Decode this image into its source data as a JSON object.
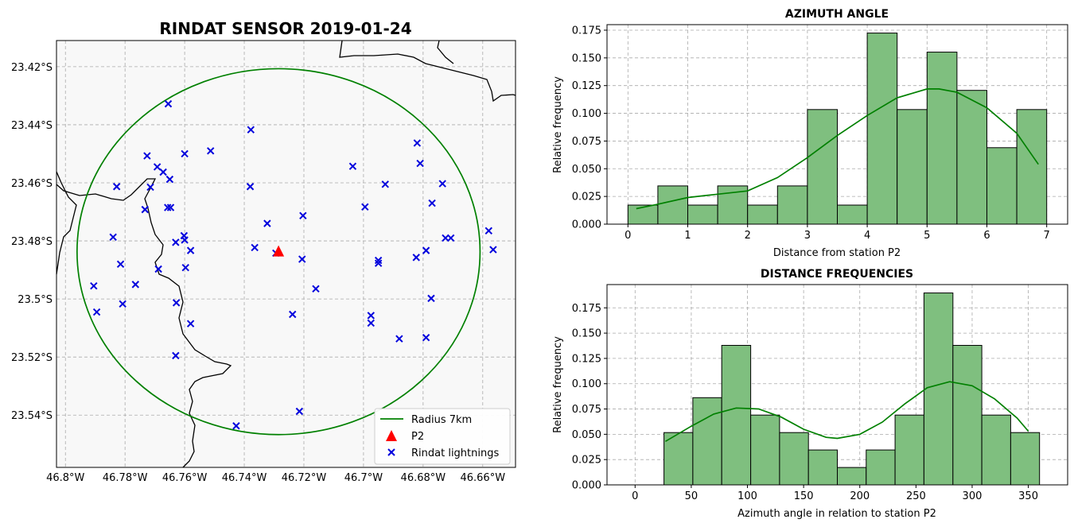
{
  "chart_data": [
    {
      "type": "map-scatter",
      "title": "RINDAT SENSOR 2019-01-24",
      "xlim": [
        -46.803,
        -46.649
      ],
      "ylim": [
        -23.558,
        -23.411
      ],
      "xticks": [
        -46.8,
        -46.78,
        -46.76,
        -46.74,
        -46.72,
        -46.7,
        -46.68,
        -46.66
      ],
      "xtick_labels": [
        "46.8°W",
        "46.78°W",
        "46.76°W",
        "46.74°W",
        "46.72°W",
        "46.7°W",
        "46.68°W",
        "46.66°W"
      ],
      "yticks": [
        -23.42,
        -23.44,
        -23.46,
        -23.48,
        -23.5,
        -23.52,
        -23.54
      ],
      "ytick_labels": [
        "23.42°S",
        "23.44°S",
        "23.46°S",
        "23.48°S",
        "23.5°S",
        "23.52°S",
        "23.54°S"
      ],
      "grid": true,
      "station": {
        "name": "P2",
        "lon": -46.7285,
        "lat": -23.4837
      },
      "radius": {
        "name": "Radius 7km",
        "rx_deg": 0.0676,
        "ry_deg": 0.063
      },
      "lightnings_name": "Rindat lightnings",
      "lightnings": [
        [
          -46.7655,
          -23.4328
        ],
        [
          -46.7378,
          -23.4417
        ],
        [
          -46.7513,
          -23.449
        ],
        [
          -46.76,
          -23.45
        ],
        [
          -46.7726,
          -23.4507
        ],
        [
          -46.7692,
          -23.4545
        ],
        [
          -46.7672,
          -23.4563
        ],
        [
          -46.765,
          -23.4588
        ],
        [
          -46.7715,
          -23.4615
        ],
        [
          -46.7828,
          -23.4613
        ],
        [
          -46.738,
          -23.4613
        ],
        [
          -46.7733,
          -23.4692
        ],
        [
          -46.7657,
          -23.4685
        ],
        [
          -46.7647,
          -23.4685
        ],
        [
          -46.7203,
          -23.4713
        ],
        [
          -46.7323,
          -23.474
        ],
        [
          -46.784,
          -23.4787
        ],
        [
          -46.7602,
          -23.4782
        ],
        [
          -46.76,
          -23.4797
        ],
        [
          -46.763,
          -23.4805
        ],
        [
          -46.758,
          -23.4833
        ],
        [
          -46.7365,
          -23.4823
        ],
        [
          -46.7294,
          -23.4842
        ],
        [
          -46.7206,
          -23.4863
        ],
        [
          -46.7815,
          -23.488
        ],
        [
          -46.7688,
          -23.4897
        ],
        [
          -46.7597,
          -23.4892
        ],
        [
          -46.716,
          -23.4965
        ],
        [
          -46.7905,
          -23.4955
        ],
        [
          -46.7765,
          -23.495
        ],
        [
          -46.7628,
          -23.5013
        ],
        [
          -46.7808,
          -23.5017
        ],
        [
          -46.7895,
          -23.5045
        ],
        [
          -46.758,
          -23.5085
        ],
        [
          -46.7238,
          -23.5053
        ],
        [
          -46.763,
          -23.5195
        ],
        [
          -46.7215,
          -23.5387
        ],
        [
          -46.7427,
          -23.5437
        ],
        [
          -46.7036,
          -23.4543
        ],
        [
          -46.6995,
          -23.4683
        ],
        [
          -46.6927,
          -23.4605
        ],
        [
          -46.695,
          -23.4867
        ],
        [
          -46.695,
          -23.4877
        ],
        [
          -46.6975,
          -23.5057
        ],
        [
          -46.6975,
          -23.5083
        ],
        [
          -46.688,
          -23.5137
        ],
        [
          -46.682,
          -23.4463
        ],
        [
          -46.681,
          -23.4533
        ],
        [
          -46.677,
          -23.467
        ],
        [
          -46.6735,
          -23.4603
        ],
        [
          -46.6725,
          -23.479
        ],
        [
          -46.6707,
          -23.479
        ],
        [
          -46.679,
          -23.4833
        ],
        [
          -46.6823,
          -23.4857
        ],
        [
          -46.679,
          -23.5133
        ],
        [
          -46.6773,
          -23.4998
        ],
        [
          -46.658,
          -23.4765
        ],
        [
          -46.6565,
          -23.483
        ]
      ],
      "legend_location": "lower right"
    },
    {
      "type": "histogram",
      "title": "AZIMUTH ANGLE",
      "xlabel": "Distance from station P2",
      "ylabel": "Relative frequency",
      "bin_edges": [
        0,
        0.5,
        1,
        1.5,
        2,
        2.5,
        3,
        3.5,
        4,
        4.5,
        5,
        5.5,
        6,
        6.5,
        7
      ],
      "values": [
        0.0172,
        0.0345,
        0.0172,
        0.0345,
        0.0172,
        0.0345,
        0.1034,
        0.0172,
        0.1724,
        0.1034,
        0.1552,
        0.1207,
        0.069,
        0.1034
      ],
      "kde_x": [
        0.14,
        0.5,
        1.0,
        1.5,
        2.0,
        2.5,
        3.0,
        3.5,
        4.0,
        4.5,
        5.0,
        5.2,
        5.5,
        6.0,
        6.5,
        6.86
      ],
      "kde_y": [
        0.014,
        0.018,
        0.024,
        0.027,
        0.03,
        0.042,
        0.06,
        0.08,
        0.098,
        0.114,
        0.122,
        0.122,
        0.119,
        0.105,
        0.082,
        0.054
      ],
      "xlim": [
        -0.35,
        7.35
      ],
      "ylim": [
        0,
        0.18
      ],
      "xticks": [
        0,
        1,
        2,
        3,
        4,
        5,
        6,
        7
      ],
      "yticks": [
        0.0,
        0.025,
        0.05,
        0.075,
        0.1,
        0.125,
        0.15,
        0.175
      ],
      "ytick_labels": [
        "0.000",
        "0.025",
        "0.050",
        "0.075",
        "0.100",
        "0.125",
        "0.150",
        "0.175"
      ],
      "grid": true
    },
    {
      "type": "histogram",
      "title": "DISTANCE FREQUENCIES",
      "xlabel": "Azimuth angle in relation to station P2",
      "ylabel": "Relative frequency",
      "bin_edges": [
        0,
        25.7,
        51.4,
        77.1,
        102.9,
        128.6,
        154.3,
        180,
        205.7,
        231.4,
        257.1,
        282.9,
        308.6,
        334.3,
        360
      ],
      "values": [
        0,
        0.0517,
        0.0862,
        0.1379,
        0.069,
        0.0517,
        0.0345,
        0.0172,
        0.0345,
        0.069,
        0.1897,
        0.1379,
        0.069,
        0.0517
      ],
      "kde_x": [
        27,
        50,
        70,
        90,
        110,
        130,
        150,
        170,
        180,
        200,
        220,
        240,
        260,
        280,
        300,
        320,
        340,
        350
      ],
      "kde_y": [
        0.043,
        0.058,
        0.07,
        0.076,
        0.075,
        0.067,
        0.055,
        0.047,
        0.046,
        0.05,
        0.062,
        0.08,
        0.096,
        0.102,
        0.098,
        0.085,
        0.066,
        0.053
      ],
      "xlim": [
        -25,
        385
      ],
      "ylim": [
        0,
        0.198
      ],
      "xticks": [
        0,
        50,
        100,
        150,
        200,
        250,
        300,
        350
      ],
      "yticks": [
        0.0,
        0.025,
        0.05,
        0.075,
        0.1,
        0.125,
        0.15,
        0.175
      ],
      "ytick_labels": [
        "0.000",
        "0.025",
        "0.050",
        "0.075",
        "0.100",
        "0.125",
        "0.150",
        "0.175"
      ],
      "grid": true
    }
  ],
  "colors": {
    "circle": "#008000",
    "station": "#ff0000",
    "lightning": "#0000dd",
    "bar_fill": "#7fbf7f",
    "kde": "#008000",
    "grid": "#aaaaaa",
    "map_bg": "#f8f8f8"
  }
}
